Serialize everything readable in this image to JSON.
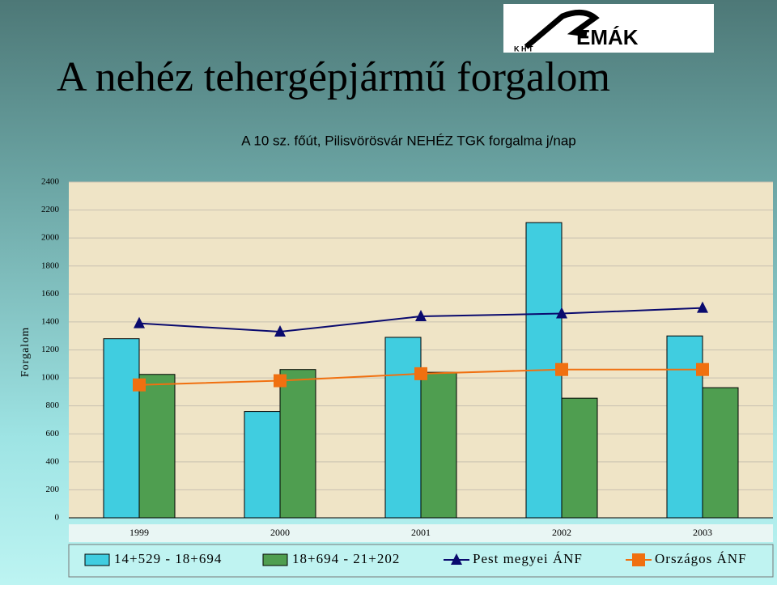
{
  "slide": {
    "title": "A nehéz tehergépjármű forgalom",
    "logo_text": "EMÁK",
    "logo_subtext": "K H T"
  },
  "chart_data": {
    "type": "bar",
    "title": "A 10 sz. főút, Pilisvörösvár NEHÉZ TGK forgalma j/nap",
    "y_label": "Forgalom",
    "categories": [
      "1999",
      "2000",
      "2001",
      "2002",
      "2003"
    ],
    "ylim": [
      0,
      2400
    ],
    "yticks": [
      0,
      200,
      400,
      600,
      800,
      1000,
      1200,
      1400,
      1600,
      1800,
      2000,
      2200,
      2400
    ],
    "grid": true,
    "series": [
      {
        "name": "14+529 - 18+694",
        "type": "bar",
        "color": "#40cde0",
        "values": [
          1280,
          760,
          1290,
          2110,
          1300
        ]
      },
      {
        "name": "18+694 - 21+202",
        "type": "bar",
        "color": "#4f9e50",
        "values": [
          1025,
          1060,
          1040,
          855,
          930
        ]
      },
      {
        "name": "Pest megyei ÁNF",
        "type": "line",
        "marker": "triangle",
        "color": "#0a0a6e",
        "values": [
          1390,
          1330,
          1440,
          1460,
          1500
        ]
      },
      {
        "name": "Országos ÁNF",
        "type": "line",
        "marker": "square",
        "color": "#f07010",
        "values": [
          950,
          980,
          1030,
          1060,
          1060
        ]
      }
    ]
  }
}
